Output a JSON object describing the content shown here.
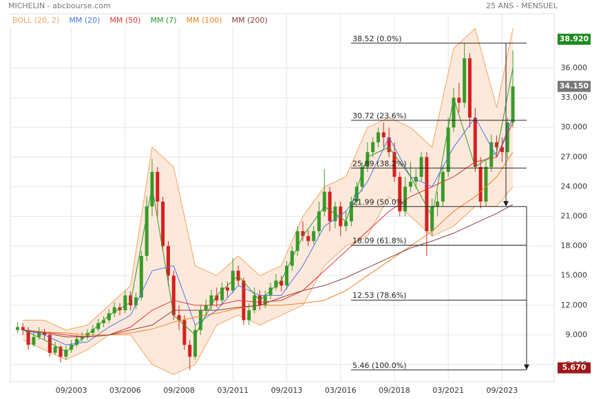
{
  "chart_data": {
    "type": "candlestick",
    "title": "MICHELIN - abcbourse.com",
    "subtitle": "25 ANS - MENSUEL",
    "x": [
      "03/2001",
      "06/2001",
      "09/2001",
      "12/2001",
      "03/2002",
      "06/2002",
      "09/2002",
      "12/2002",
      "03/2003",
      "06/2003",
      "09/2003",
      "12/2003",
      "03/2004",
      "06/2004",
      "09/2004",
      "12/2004",
      "03/2005",
      "06/2005",
      "09/2005",
      "12/2005",
      "03/2006",
      "06/2006",
      "09/2006",
      "12/2006",
      "03/2007",
      "06/2007",
      "09/2007",
      "12/2007",
      "03/2008",
      "06/2008",
      "09/2008",
      "12/2008",
      "03/2009",
      "06/2009",
      "09/2009",
      "12/2009",
      "03/2010",
      "06/2010",
      "09/2010",
      "12/2010",
      "03/2011",
      "06/2011",
      "09/2011",
      "12/2011",
      "03/2012",
      "06/2012",
      "09/2012",
      "12/2012",
      "03/2013",
      "06/2013",
      "09/2013",
      "12/2013",
      "03/2014",
      "06/2014",
      "09/2014",
      "12/2014",
      "03/2015",
      "06/2015",
      "09/2015",
      "12/2015",
      "03/2016",
      "06/2016",
      "09/2016",
      "12/2016",
      "03/2017",
      "06/2017",
      "09/2017",
      "12/2017",
      "03/2018",
      "06/2018",
      "09/2018",
      "12/2018",
      "03/2019",
      "06/2019",
      "09/2019",
      "12/2019",
      "03/2020",
      "06/2020",
      "09/2020",
      "12/2020",
      "03/2021",
      "06/2021",
      "09/2021",
      "12/2021",
      "03/2022",
      "06/2022",
      "09/2022",
      "12/2022",
      "03/2023",
      "06/2023",
      "09/2023",
      "12/2023",
      "03/2024"
    ],
    "open": [
      9.5,
      9.8,
      9.5,
      8.0,
      8.8,
      9.3,
      9.0,
      7.2,
      7.8,
      6.8,
      7.5,
      8.0,
      8.6,
      8.8,
      9.2,
      9.6,
      10.2,
      10.5,
      11.2,
      11.8,
      11.5,
      13.0,
      12.0,
      12.8,
      17.0,
      22.0,
      25.5,
      22.5,
      18.0,
      15.0,
      11.0,
      10.5,
      8.0,
      6.8,
      9.5,
      11.5,
      12.0,
      13.0,
      12.5,
      13.8,
      13.5,
      15.5,
      14.5,
      10.5,
      11.5,
      13.0,
      12.0,
      13.0,
      13.8,
      14.5,
      14.0,
      16.0,
      17.5,
      19.5,
      19.0,
      18.5,
      19.5,
      21.5,
      23.5,
      20.5,
      22.0,
      20.0,
      20.5,
      22.5,
      24.0,
      26.0,
      27.5,
      28.5,
      29.5,
      29.0,
      27.5,
      25.0,
      21.5,
      24.0,
      24.5,
      25.0,
      27.0,
      19.5,
      22.0,
      22.5,
      25.5,
      30.0,
      33.0,
      32.5,
      37.0,
      31.0,
      26.0,
      22.5,
      26.0,
      28.5,
      28.0,
      27.5,
      30.5
    ],
    "high": [
      10.3,
      10.2,
      9.8,
      9.3,
      9.8,
      9.6,
      9.3,
      8.3,
      8.0,
      7.9,
      8.5,
      9.0,
      9.3,
      9.6,
      10.0,
      10.6,
      10.9,
      11.6,
      12.3,
      12.2,
      13.5,
      13.4,
      13.3,
      17.5,
      23.0,
      26.8,
      26.0,
      23.0,
      18.5,
      15.5,
      12.0,
      11.0,
      8.5,
      10.0,
      12.0,
      12.6,
      13.6,
      13.8,
      14.3,
      14.4,
      16.8,
      16.0,
      14.8,
      12.2,
      13.8,
      13.5,
      13.5,
      14.3,
      15.2,
      15.0,
      16.5,
      18.0,
      20.0,
      20.5,
      19.6,
      20.0,
      22.5,
      25.8,
      24.0,
      22.5,
      22.5,
      21.5,
      23.0,
      24.5,
      26.5,
      28.5,
      29.0,
      30.0,
      30.5,
      30.0,
      28.5,
      25.5,
      25.0,
      26.5,
      25.8,
      27.5,
      27.5,
      22.8,
      23.5,
      26.2,
      31.0,
      34.0,
      34.5,
      38.52,
      37.5,
      32.0,
      27.0,
      26.8,
      29.3,
      29.2,
      29.0,
      31.0,
      37.8
    ],
    "low": [
      9.2,
      9.0,
      7.5,
      7.8,
      8.5,
      8.5,
      6.8,
      7.0,
      6.2,
      6.5,
      7.2,
      7.8,
      8.3,
      8.5,
      8.9,
      9.3,
      9.8,
      10.2,
      10.8,
      11.0,
      11.2,
      11.5,
      11.6,
      12.5,
      16.5,
      21.0,
      21.0,
      17.5,
      14.0,
      10.5,
      9.5,
      7.5,
      5.46,
      6.5,
      9.0,
      11.0,
      11.5,
      11.8,
      12.0,
      12.8,
      13.2,
      14.0,
      10.0,
      10.0,
      11.2,
      11.5,
      11.7,
      12.6,
      13.5,
      13.4,
      13.6,
      15.5,
      17.0,
      18.5,
      18.0,
      18.2,
      19.0,
      21.0,
      19.5,
      19.8,
      19.0,
      19.5,
      20.0,
      22.0,
      23.5,
      25.5,
      27.0,
      28.0,
      28.0,
      27.0,
      24.5,
      21.0,
      21.0,
      23.5,
      23.8,
      24.5,
      17.0,
      19.0,
      21.0,
      22.0,
      25.0,
      29.5,
      31.5,
      32.0,
      30.0,
      25.5,
      21.8,
      22.0,
      25.5,
      27.0,
      26.5,
      26.8,
      30.0
    ],
    "close": [
      9.8,
      9.5,
      8.0,
      8.8,
      9.3,
      9.0,
      7.2,
      7.8,
      6.8,
      7.5,
      8.0,
      8.6,
      8.8,
      9.2,
      9.6,
      10.2,
      10.5,
      11.2,
      11.8,
      11.5,
      13.0,
      12.0,
      12.8,
      17.0,
      22.0,
      25.5,
      22.5,
      18.0,
      15.0,
      11.0,
      10.5,
      8.0,
      6.8,
      9.5,
      11.5,
      12.0,
      13.0,
      12.5,
      13.8,
      13.5,
      15.5,
      14.5,
      10.5,
      11.5,
      13.0,
      12.0,
      13.0,
      13.8,
      14.5,
      14.0,
      16.0,
      17.5,
      19.5,
      19.0,
      18.5,
      19.5,
      21.5,
      23.5,
      20.5,
      22.0,
      20.0,
      20.5,
      22.5,
      24.0,
      26.0,
      27.5,
      28.5,
      29.5,
      29.0,
      27.5,
      25.0,
      21.5,
      24.0,
      24.5,
      25.0,
      27.0,
      19.5,
      22.0,
      22.5,
      25.5,
      30.0,
      33.0,
      32.5,
      37.0,
      31.0,
      26.0,
      22.5,
      26.0,
      28.5,
      28.0,
      27.5,
      30.5,
      34.15
    ],
    "up_color": "#3a9a2a",
    "down_color": "#d42020",
    "xlim": [
      "11/2000",
      "02/2026"
    ],
    "xticks": [
      "09/2003",
      "03/2006",
      "09/2008",
      "03/2011",
      "09/2013",
      "03/2016",
      "09/2018",
      "03/2021",
      "09/2023"
    ],
    "ylim": [
      4.26,
      41.5
    ],
    "yticks": [
      {
        "value": 6,
        "label": "6.000"
      },
      {
        "value": 9,
        "label": "9.000"
      },
      {
        "value": 12,
        "label": "12.000"
      },
      {
        "value": 15,
        "label": "15.000"
      },
      {
        "value": 18,
        "label": "18.000"
      },
      {
        "value": 21,
        "label": "21.000"
      },
      {
        "value": 24,
        "label": "24.000"
      },
      {
        "value": 27,
        "label": "27.000"
      },
      {
        "value": 30,
        "label": "30.000"
      },
      {
        "value": 33,
        "label": "33.000"
      },
      {
        "value": 36,
        "label": "36.000"
      }
    ],
    "grid": true,
    "overlays": {
      "x": [
        "06/2001",
        "06/2002",
        "06/2003",
        "06/2004",
        "06/2005",
        "06/2006",
        "06/2007",
        "06/2008",
        "06/2009",
        "06/2010",
        "06/2011",
        "06/2012",
        "06/2013",
        "06/2014",
        "06/2015",
        "06/2016",
        "06/2017",
        "06/2018",
        "06/2019",
        "06/2020",
        "06/2021",
        "06/2022",
        "06/2023",
        "03/2024"
      ],
      "series": [
        {
          "name": "BOLL (20, 2)",
          "color": "#f4a460",
          "upper": [
            10.5,
            10.5,
            9.5,
            10,
            12,
            14,
            28,
            26,
            16,
            15,
            17,
            15,
            16,
            21,
            24,
            25,
            30,
            31,
            30,
            28,
            38,
            40,
            32,
            40
          ],
          "lower": [
            8.5,
            7.5,
            6.5,
            7.5,
            9,
            9,
            6,
            5,
            6,
            10,
            11,
            10,
            11,
            12,
            16,
            18,
            19,
            23,
            21,
            19,
            20,
            22,
            22,
            24
          ]
        },
        {
          "name": "MM (20)",
          "color": "#4a74e8",
          "values": [
            9.5,
            9.0,
            8.0,
            8.3,
            9.8,
            11.0,
            15.5,
            16,
            10,
            11.5,
            14,
            13,
            13,
            16,
            20,
            21.5,
            24.5,
            29,
            25,
            24,
            28,
            31,
            27,
            31
          ]
        },
        {
          "name": "MM (50)",
          "color": "#e03030",
          "values": [
            9.5,
            9.3,
            9.0,
            8.8,
            9.0,
            9.8,
            11.5,
            12.5,
            12.0,
            12,
            12.5,
            12.3,
            12.5,
            13.5,
            15.5,
            17.5,
            19.5,
            21.5,
            23,
            24,
            25,
            26.5,
            27,
            30.5
          ]
        },
        {
          "name": "MM (7)",
          "color": "#2a9a2a",
          "values": [
            9.5,
            8.5,
            7.3,
            9.0,
            11.0,
            12.3,
            24,
            11,
            9,
            13,
            15,
            12.5,
            14.5,
            19,
            22,
            20.5,
            27,
            28,
            25,
            21,
            33,
            26,
            27.5,
            36
          ]
        },
        {
          "name": "MM (100)",
          "color": "#f08020",
          "values": [
            9.5,
            9.3,
            9.2,
            9.0,
            9.0,
            9.2,
            9.6,
            10.3,
            10.8,
            11.2,
            11.7,
            12.0,
            12.0,
            12.2,
            12.5,
            13.5,
            15,
            16.5,
            18,
            19.5,
            21.5,
            23,
            25,
            27.5
          ]
        },
        {
          "name": "MM (200)",
          "color": "#8b3a3a",
          "values": [
            9.5,
            9.2,
            8.8,
            8.8,
            9.0,
            9.5,
            10.0,
            11.5,
            11.5,
            11.5,
            11.8,
            12.0,
            12.8,
            13.5,
            14.0,
            14.8,
            15.8,
            16.8,
            17.8,
            18.5,
            19.3,
            20.3,
            21.3,
            22.2
          ]
        }
      ]
    },
    "fibonacci": [
      {
        "value": 38.52,
        "label": "38.52  (0.0%)"
      },
      {
        "value": 30.72,
        "label": "30.72  (23.6%)"
      },
      {
        "value": 25.89,
        "label": "25.89  (38.2%)"
      },
      {
        "value": 21.99,
        "label": "21.99  (50.0%)"
      },
      {
        "value": 18.09,
        "label": "18.09  (61.8%)"
      },
      {
        "value": 12.53,
        "label": "12.53  (78.6%)"
      },
      {
        "value": 5.46,
        "label": "5.46  (100.0%)"
      }
    ],
    "markers": [
      {
        "value": 38.92,
        "label": "38.920",
        "color": "#1f8a1f"
      },
      {
        "value": 34.15,
        "label": "34.150",
        "color": "#777777"
      },
      {
        "value": 5.67,
        "label": "5.670",
        "color": "#a01818"
      }
    ]
  }
}
